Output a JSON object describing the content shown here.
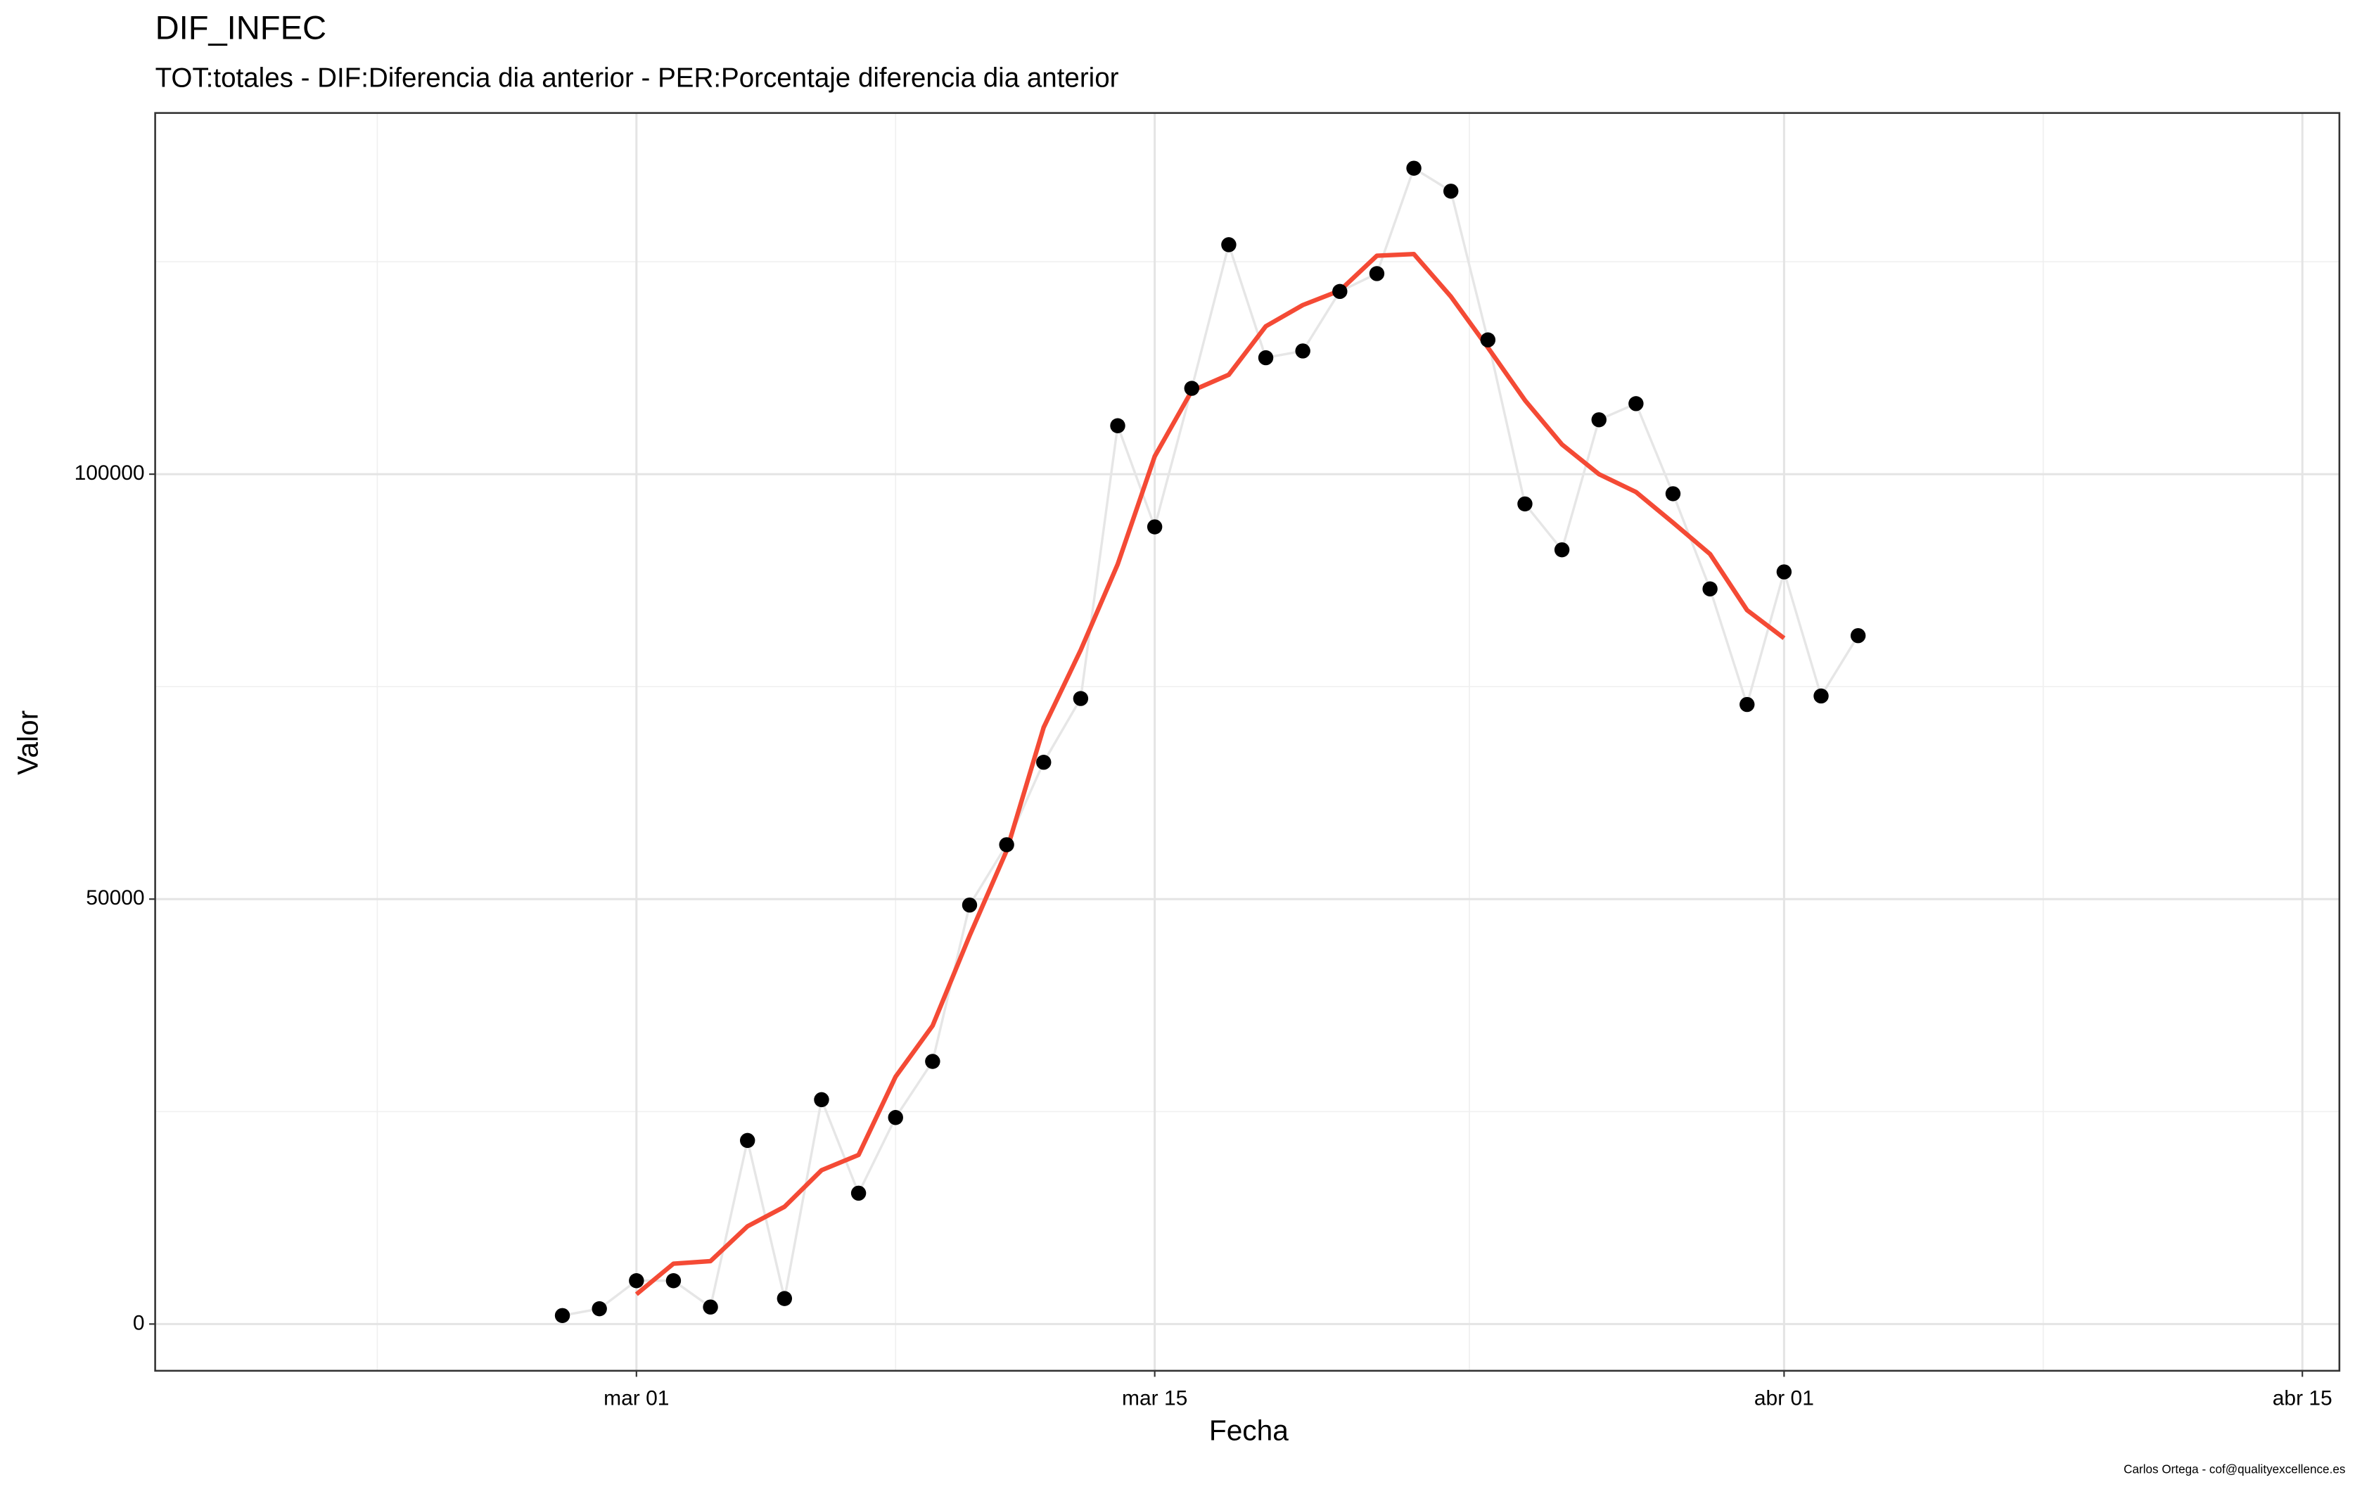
{
  "chart_data": {
    "type": "line",
    "title": "DIF_INFEC",
    "subtitle": "TOT:totales - DIF:Diferencia dia anterior - PER:Porcentaje diferencia dia anterior",
    "x_label": "Fecha",
    "y_label": "Valor",
    "caption": "Carlos Ortega - cof@qualityexcellence.es",
    "x": [
      "02-28",
      "02-29",
      "03-01",
      "03-02",
      "03-03",
      "03-04",
      "03-05",
      "03-06",
      "03-07",
      "03-08",
      "03-09",
      "03-10",
      "03-11",
      "03-12",
      "03-13",
      "03-14",
      "03-15",
      "03-16",
      "03-17",
      "03-18",
      "03-19",
      "03-20",
      "03-21",
      "03-22",
      "03-23",
      "03-24",
      "03-25",
      "03-26",
      "03-27",
      "03-28",
      "03-29",
      "03-30",
      "03-31",
      "04-01",
      "04-02",
      "04-03"
    ],
    "series": [
      {
        "mode": "points",
        "color": "#000000",
        "line_color": "#e6e6e6",
        "values": [
          1000,
          1800,
          5100,
          5100,
          2000,
          21600,
          3000,
          26400,
          15400,
          24300,
          30900,
          49300,
          56400,
          66100,
          73600,
          105700,
          93800,
          110100,
          127000,
          113700,
          114500,
          121500,
          123600,
          136000,
          133300,
          115800,
          96500,
          91100,
          106400,
          108300,
          97700,
          86500,
          72900,
          88500,
          73900,
          81000
        ]
      },
      {
        "mode": "line",
        "color": "#f44a35",
        "values": [
          null,
          null,
          3500,
          7100,
          7400,
          11500,
          13800,
          18100,
          19900,
          29100,
          35100,
          45700,
          55700,
          70200,
          79300,
          89400,
          102100,
          109800,
          111700,
          117400,
          119900,
          121600,
          125700,
          125900,
          120900,
          114900,
          108700,
          103500,
          100000,
          97900,
          94300,
          90600,
          84000,
          80700,
          null,
          null
        ]
      }
    ],
    "xlim": [
      "02-17",
      "04-16"
    ],
    "xticks": [
      {
        "value": "03-01",
        "label": "mar 01"
      },
      {
        "value": "03-15",
        "label": "mar 15"
      },
      {
        "value": "04-01",
        "label": "abr 01"
      },
      {
        "value": "04-15",
        "label": "abr 15"
      }
    ],
    "ylim": [
      -5500,
      142500
    ],
    "yticks": [
      0,
      50000,
      100000
    ],
    "grid": true
  }
}
